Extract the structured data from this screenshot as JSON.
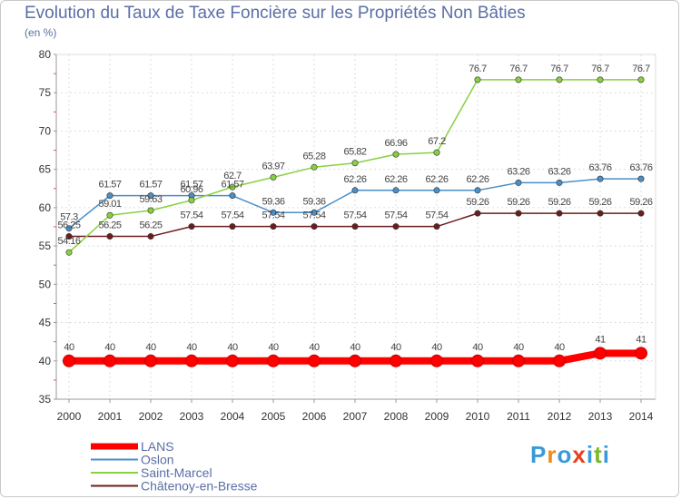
{
  "chart_data": {
    "type": "line",
    "title": "Evolution du Taux de Taxe Foncière sur les Propriétés Non Bâties",
    "ylabel": "(en %)",
    "xlabel": "",
    "ylim": [
      35,
      80
    ],
    "yticks": [
      "35",
      "40",
      "45",
      "50",
      "55",
      "60",
      "65",
      "70",
      "75",
      "80"
    ],
    "categories": [
      "2000",
      "2001",
      "2002",
      "2003",
      "2004",
      "2005",
      "2006",
      "2007",
      "2008",
      "2009",
      "2010",
      "2011",
      "2012",
      "2013",
      "2014"
    ],
    "series": [
      {
        "name": "Châtenoy-en-Bresse",
        "color": "#6b1d1d",
        "values": [
          56.25,
          56.25,
          56.25,
          57.54,
          57.54,
          57.54,
          57.54,
          57.54,
          57.54,
          57.54,
          59.26,
          59.26,
          59.26,
          59.26,
          59.26
        ],
        "labels": [
          "56.25",
          "56.25",
          "56.25",
          "57.54",
          "57.54",
          "57.54",
          "57.54",
          "57.54",
          "57.54",
          "57.54",
          "59.26",
          "59.26",
          "59.26",
          "59.26",
          "59.26"
        ]
      },
      {
        "name": "Oslon",
        "color": "#4a8fc7",
        "values": [
          57.3,
          61.57,
          61.57,
          61.57,
          61.57,
          59.36,
          59.36,
          62.26,
          62.26,
          62.26,
          62.26,
          63.26,
          63.26,
          63.76,
          63.76
        ],
        "labels": [
          "57.3",
          "61.57",
          "61.57",
          "61.57",
          "61.57",
          "59.36",
          "59.36",
          "62.26",
          "62.26",
          "62.26",
          "62.26",
          "63.26",
          "63.26",
          "63.76",
          "63.76"
        ]
      },
      {
        "name": "Saint-Marcel",
        "color": "#88d040",
        "values": [
          54.16,
          59.01,
          59.63,
          60.96,
          62.7,
          63.97,
          65.28,
          65.82,
          66.96,
          67.2,
          76.7,
          76.7,
          76.7,
          76.7,
          76.7
        ],
        "labels": [
          "54.16",
          "59.01",
          "59.63",
          "60.96",
          "62.7",
          "63.97",
          "65.28",
          "65.82",
          "66.96",
          "67.2",
          "76.7",
          "76.7",
          "76.7",
          "76.7",
          "76.7"
        ]
      },
      {
        "name": "LANS",
        "color": "#ff0000",
        "values": [
          40,
          40,
          40,
          40,
          40,
          40,
          40,
          40,
          40,
          40,
          40,
          40,
          40,
          41,
          41
        ],
        "labels": [
          "40",
          "40",
          "40",
          "40",
          "40",
          "40",
          "40",
          "40",
          "40",
          "40",
          "40",
          "40",
          "40",
          "41",
          "41"
        ]
      }
    ],
    "legend": [
      "LANS",
      "Oslon",
      "Saint-Marcel",
      "Châtenoy-en-Bresse"
    ],
    "legend_position": "bottom-left",
    "grid": true
  },
  "logo": {
    "letters": [
      "P",
      "r",
      "o",
      "x",
      "i",
      "t",
      "i"
    ],
    "colors": [
      "#3a9ad9",
      "#f08a1c",
      "#3a9ad9",
      "#e8401c",
      "#3a9ad9",
      "#78b828",
      "#3a9ad9"
    ]
  }
}
